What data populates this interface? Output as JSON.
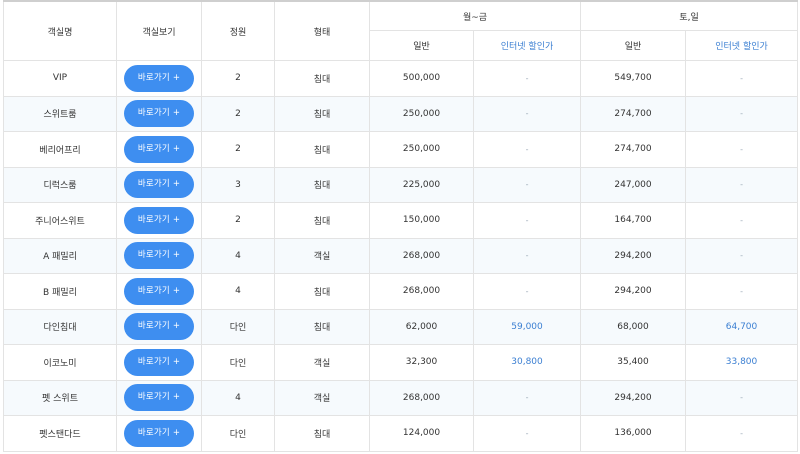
{
  "header": {
    "room_name": "객실명",
    "room_view": "객실보기",
    "capacity": "정원",
    "type": "형태",
    "weekday": "월~금",
    "weekend": "토,일",
    "weekday_regular": "일반",
    "weekday_internet": "인터넷 할인가",
    "weekend_regular": "일반",
    "weekend_internet": "인터넷 할인가"
  },
  "rows": [
    {
      "name": "VIP",
      "button": "바로가기 +",
      "capacity": "2",
      "type": "침대",
      "wd_regular": "500,000",
      "wd_internet": "-",
      "we_regular": "549,700",
      "we_internet": "-"
    },
    {
      "name": "스위트룸",
      "button": "바로가기 +",
      "capacity": "2",
      "type": "침대",
      "wd_regular": "250,000",
      "wd_internet": "-",
      "we_regular": "274,700",
      "we_internet": "-"
    },
    {
      "name": "베리어프리",
      "button": "바로가기 +",
      "capacity": "2",
      "type": "침대",
      "wd_regular": "250,000",
      "wd_internet": "-",
      "we_regular": "274,700",
      "we_internet": "-"
    },
    {
      "name": "디럭스룸",
      "button": "바로가기 +",
      "capacity": "3",
      "type": "침대",
      "wd_regular": "225,000",
      "wd_internet": "-",
      "we_regular": "247,000",
      "we_internet": "-"
    },
    {
      "name": "주니어스위트",
      "button": "바로가기 +",
      "capacity": "2",
      "type": "침대",
      "wd_regular": "150,000",
      "wd_internet": "-",
      "we_regular": "164,700",
      "we_internet": "-"
    },
    {
      "name": "A 패밀리",
      "button": "바로가기 +",
      "capacity": "4",
      "type": "객실",
      "wd_regular": "268,000",
      "wd_internet": "-",
      "we_regular": "294,200",
      "we_internet": "-"
    },
    {
      "name": "B 패밀리",
      "button": "바로가기 +",
      "capacity": "4",
      "type": "침대",
      "wd_regular": "268,000",
      "wd_internet": "-",
      "we_regular": "294,200",
      "we_internet": "-"
    },
    {
      "name": "다인침대",
      "button": "바로가기 +",
      "capacity": "다인",
      "type": "침대",
      "wd_regular": "62,000",
      "wd_internet": "59,000",
      "we_regular": "68,000",
      "we_internet": "64,700"
    },
    {
      "name": "이코노미",
      "button": "바로가기 +",
      "capacity": "다인",
      "type": "객실",
      "wd_regular": "32,300",
      "wd_internet": "30,800",
      "we_regular": "35,400",
      "we_internet": "33,800"
    },
    {
      "name": "펫 스위트",
      "button": "바로가기 +",
      "capacity": "4",
      "type": "객실",
      "wd_regular": "268,000",
      "wd_internet": "-",
      "we_regular": "294,200",
      "we_internet": "-"
    },
    {
      "name": "펫스탠다드",
      "button": "바로가기 +",
      "capacity": "다인",
      "type": "침대",
      "wd_regular": "124,000",
      "wd_internet": "-",
      "we_regular": "136,000",
      "we_internet": "-"
    }
  ]
}
